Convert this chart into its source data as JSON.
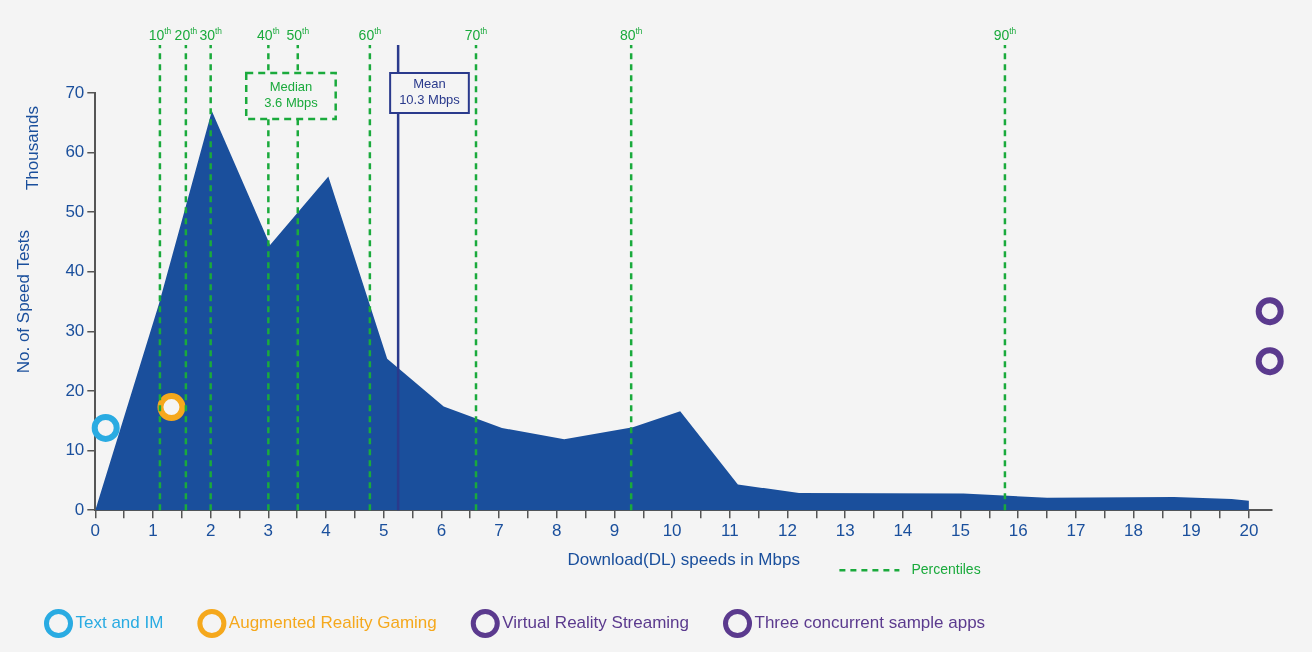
{
  "chart_data": {
    "type": "area",
    "xlabel": "Download(DL) speeds in Mbps",
    "ylabel": "No. of Speed Tests",
    "legend": "bottom",
    "xlim": [
      0,
      20.4
    ],
    "ylim": [
      0,
      70
    ],
    "xticks": [
      0,
      {
        "value": 0.5,
        "label": null
      },
      1,
      {
        "value": 1.5,
        "label": null
      },
      2,
      {
        "value": 2.5,
        "label": null
      },
      3,
      {
        "value": 3.5,
        "label": null
      },
      4,
      {
        "value": 4.5,
        "label": null
      },
      5,
      {
        "value": 5.5,
        "label": null
      },
      6,
      {
        "value": 6.5,
        "label": null
      },
      7,
      {
        "value": 7.5,
        "label": null
      },
      8,
      {
        "value": 8.5,
        "label": null
      },
      9,
      {
        "value": 9.5,
        "label": null
      },
      10,
      {
        "value": 10.5,
        "label": null
      },
      11,
      {
        "value": 11.5,
        "label": null
      },
      12,
      {
        "value": 12.5,
        "label": null
      },
      13,
      {
        "value": 13.5,
        "label": null
      },
      14,
      {
        "value": 14.5,
        "label": null
      },
      15,
      {
        "value": 15.5,
        "label": null
      },
      16,
      {
        "value": 16.5,
        "label": null
      },
      17,
      {
        "value": 17.5,
        "label": null
      },
      18,
      {
        "value": 18.5,
        "label": null
      },
      19,
      {
        "value": 19.5,
        "label": null
      },
      20
    ],
    "yticks": [
      0,
      10,
      20,
      30,
      40,
      50,
      60,
      70
    ],
    "series": [
      {
        "color": "#1a4f9c",
        "x": [
          0,
          1.1,
          1.54,
          2.02,
          3.03,
          4.04,
          5.06,
          6.04,
          7.05,
          8.13,
          9.32,
          10.14,
          11.14,
          12.2,
          15.05,
          16.5,
          18.7,
          19.7,
          20
        ],
        "values": [
          0,
          34.5,
          50,
          67,
          44.5,
          56,
          25.4,
          17.4,
          13.8,
          11.9,
          13.9,
          16.6,
          4.3,
          2.9,
          2.8,
          2.1,
          2.2,
          1.9,
          1.6
        ]
      },
      {
        "type": "scatter",
        "name": "Text and IM",
        "color": "#29abe2",
        "x": [
          0.18
        ],
        "values": [
          13.8
        ]
      },
      {
        "type": "scatter",
        "name": "Augmented Reality Gaming",
        "color": "#f5a81c",
        "x": [
          1.32
        ],
        "values": [
          17.3
        ]
      },
      {
        "type": "scatter",
        "name": "Virtual Reality Streaming",
        "color": "#5b3a8e",
        "x": [
          20.36
        ],
        "values": [
          25
        ]
      },
      {
        "type": "scatter",
        "name": "Three concurrent sample apps",
        "color": "#5b3a8e",
        "x": [
          20.36
        ],
        "values": [
          33.4
        ]
      }
    ],
    "ref_lines": [
      {
        "axis": "x",
        "value": 1.12,
        "label": "10$^{th}$",
        "color": "#1aaa3c",
        "line_style": "dashed"
      },
      {
        "axis": "x",
        "value": 1.57,
        "label": "20$^{th}$",
        "color": "#1aaa3c",
        "line_style": "dashed"
      },
      {
        "axis": "x",
        "value": 2.0,
        "label": "30$^{th}$",
        "color": "#1aaa3c",
        "line_style": "dashed"
      },
      {
        "axis": "x",
        "value": 3.0,
        "label": "40$^{th}$",
        "color": "#1aaa3c",
        "line_style": "dashed"
      },
      {
        "axis": "x",
        "value": 3.51,
        "label": "50$^{th}$",
        "color": "#1aaa3c",
        "line_style": "dashed"
      },
      {
        "axis": "x",
        "value": 4.76,
        "label": "60$^{th}$",
        "color": "#1aaa3c",
        "line_style": "dashed"
      },
      {
        "axis": "x",
        "value": 6.6,
        "label": "70$^{th}$",
        "color": "#1aaa3c",
        "line_style": "dashed"
      },
      {
        "axis": "x",
        "value": 9.29,
        "label": "80$^{th}$",
        "color": "#1aaa3c",
        "line_style": "dashed"
      },
      {
        "axis": "x",
        "value": 15.77,
        "label": "90$^{th}$",
        "color": "#1aaa3c",
        "line_style": "dashed"
      },
      {
        "axis": "x",
        "value": 5.25,
        "label": "Mean\n10.3 Mbps",
        "color": "#2a3a8c",
        "line_style": "solid"
      }
    ],
    "annotations": [
      "Thousands",
      "Median\n3.6 Mbps",
      "Percentiles"
    ]
  }
}
